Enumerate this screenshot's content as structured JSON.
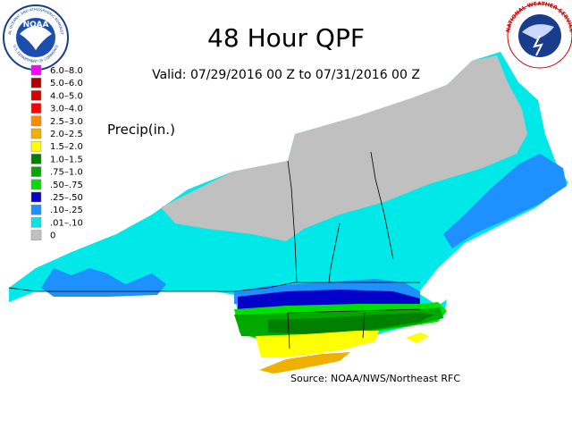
{
  "header": {
    "title": "48 Hour QPF",
    "subtitle": "Valid: 07/29/2016 00 Z to 07/31/2016 00 Z"
  },
  "legend": {
    "title": "Precip(in.)",
    "items": [
      {
        "label": "6.0–8.0",
        "color": "#ff00ff"
      },
      {
        "label": "5.0–6.0",
        "color": "#b00000"
      },
      {
        "label": "4.0–5.0",
        "color": "#d80000"
      },
      {
        "label": "3.0–4.0",
        "color": "#ff0000"
      },
      {
        "label": "2.5–3.0",
        "color": "#ff8c00"
      },
      {
        "label": "2.0–2.5",
        "color": "#f0b000"
      },
      {
        "label": "1.5–2.0",
        "color": "#ffff00"
      },
      {
        "label": "1.0–1.5",
        "color": "#008000"
      },
      {
        "label": ".75–1.0",
        "color": "#00a800"
      },
      {
        "label": ".50–.75",
        "color": "#00e000"
      },
      {
        "label": ".25–.50",
        "color": "#0000c8"
      },
      {
        "label": ".10–.25",
        "color": "#1e90ff"
      },
      {
        "label": ".01–.10",
        "color": "#00e8e8"
      },
      {
        "label": "0",
        "color": "#c0c0c0"
      }
    ]
  },
  "source": "Source: NOAA/NWS/Northeast RFC",
  "logos": {
    "noaa": {
      "label": "NOAA",
      "ring": "NATIONAL OCEANIC AND ATMOSPHERIC ADMINISTRATION",
      "dept": "U.S. DEPARTMENT OF COMMERCE"
    },
    "nws": "NATIONAL WEATHER SERVICE"
  }
}
